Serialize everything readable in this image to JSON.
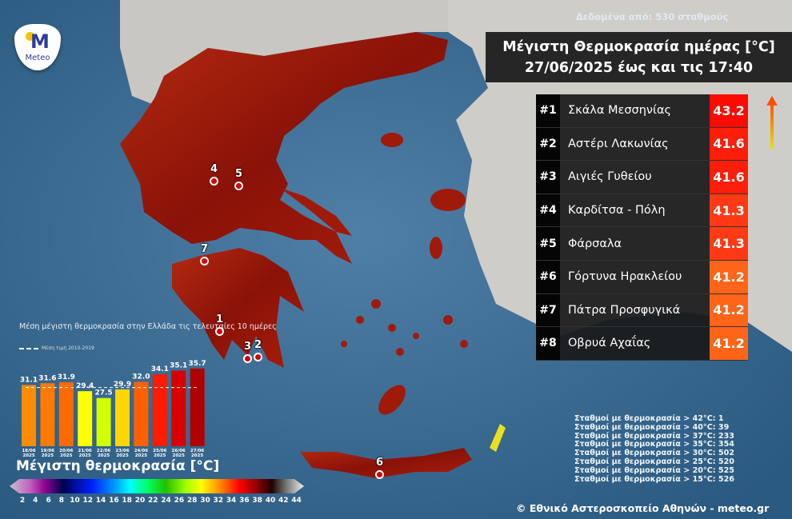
{
  "logo": {
    "text": "Meteo"
  },
  "source_note": "Δεδομένα από: 530 σταθμούς",
  "title": {
    "line1": "Μέγιστη Θερμοκρασία ημέρας [°C]",
    "line2": "27/06/2025 έως και τις 17:40"
  },
  "ranking": [
    {
      "rank": "#1",
      "station": "Σκάλα Μεσσηνίας",
      "value": "43.2",
      "color": "#ff0a00"
    },
    {
      "rank": "#2",
      "station": "Αστέρι Λακωνίας",
      "value": "41.6",
      "color": "#ff1e0a"
    },
    {
      "rank": "#3",
      "station": "Αιγιές Γυθείου",
      "value": "41.6",
      "color": "#ff1e0a"
    },
    {
      "rank": "#4",
      "station": "Καρδίτσα - Πόλη",
      "value": "41.3",
      "color": "#ff3a14"
    },
    {
      "rank": "#5",
      "station": "Φάρσαλα",
      "value": "41.3",
      "color": "#ff3a14"
    },
    {
      "rank": "#6",
      "station": "Γόρτυνα Ηρακλείου",
      "value": "41.2",
      "color": "#ff6418"
    },
    {
      "rank": "#7",
      "station": "Πάτρα Προσφυγικά",
      "value": "41.2",
      "color": "#ff6418"
    },
    {
      "rank": "#8",
      "station": "Οβρυά Αχαΐας",
      "value": "41.2",
      "color": "#ff6418"
    }
  ],
  "stations_counts": [
    "Σταθμοί με θερμοκρασία > 42°C: 1",
    "Σταθμοί με θερμοκρασία > 40°C: 39",
    "Σταθμοί με θερμοκρασία > 37°C: 233",
    "Σταθμοί με θερμοκρασία > 35°C: 354",
    "Σταθμοί με θερμοκρασία > 30°C: 502",
    "Σταθμοί με θερμοκρασία > 25°C: 520",
    "Σταθμοί με θερμοκρασία > 20°C: 525",
    "Σταθμοί με θερμοκρασία > 15°C: 526"
  ],
  "copyright": "© Εθνικό Αστεροσκοπείο Αθηνών - meteo.gr",
  "map_markers": [
    "1",
    "2",
    "3",
    "4",
    "5",
    "6",
    "7"
  ],
  "chart_data": {
    "type": "bar",
    "title": "Μέση μέγιστη θερμοκρασία στην Ελλάδα τις τελευταίες 10 ημέρες",
    "reference_label": "Μέση τιμή 2010-2019",
    "reference_value": 30.4,
    "categories": [
      "18/06 2025",
      "19/06 2025",
      "20/06 2025",
      "21/06 2025",
      "22/06 2025",
      "23/06 2025",
      "24/06 2025",
      "25/06 2025",
      "26/06 2025",
      "27/06 2025"
    ],
    "values": [
      31.1,
      31.6,
      31.9,
      29.4,
      27.5,
      29.9,
      32.0,
      34.1,
      35.1,
      35.7
    ],
    "labels": [
      "31.1",
      "31.6",
      "31.9",
      "29.4",
      "27.5",
      "29.9",
      "32.0",
      "34.1",
      "35.1",
      "35.7"
    ],
    "colors": [
      "#ff8c00",
      "#ff7a00",
      "#ff6a00",
      "#ffff00",
      "#d4ff00",
      "#ffd700",
      "#ff6000",
      "#ff1a00",
      "#d80000",
      "#b00000"
    ]
  },
  "colorbar": {
    "title": "Μέγιστη θερμοκρασία [°C]",
    "ticks": [
      "2",
      "4",
      "6",
      "8",
      "10",
      "12",
      "14",
      "16",
      "18",
      "20",
      "22",
      "24",
      "26",
      "28",
      "30",
      "32",
      "34",
      "36",
      "38",
      "40",
      "42",
      "44"
    ]
  }
}
